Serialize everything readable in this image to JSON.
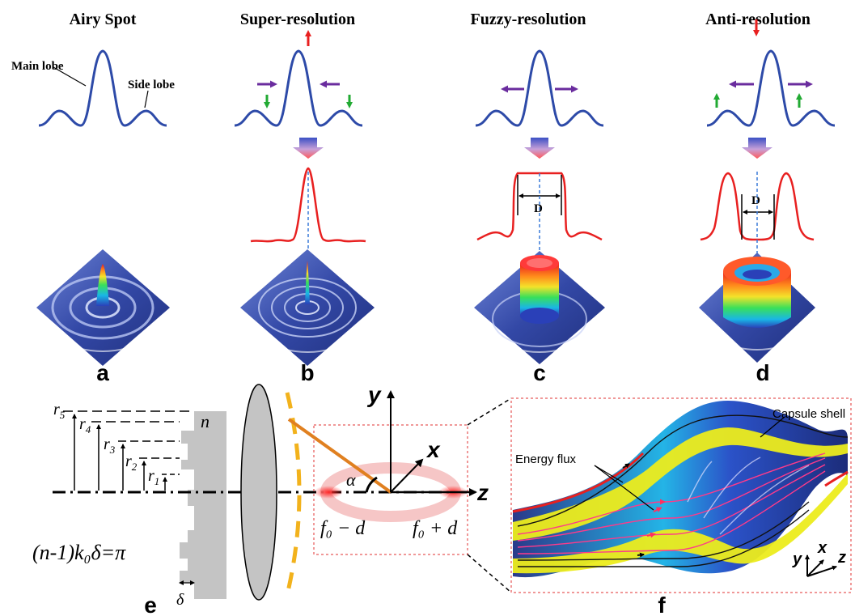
{
  "titles": {
    "a": "Airy Spot",
    "b": "Super-resolution",
    "c": "Fuzzy-resolution",
    "d": "Anti-resolution"
  },
  "panel_labels": {
    "a": "a",
    "b": "b",
    "c": "c",
    "d": "d",
    "e": "e",
    "f": "f"
  },
  "airy_annotations": {
    "main_lobe": "Main lobe",
    "side_lobe": "Side lobe"
  },
  "width_label": "D",
  "panel_e": {
    "radii": [
      "r",
      "r",
      "r",
      "r",
      "r"
    ],
    "radii_subscripts": [
      "5",
      "4",
      "3",
      "2",
      "1"
    ],
    "index_label": "n",
    "delta_label": "δ",
    "phase_equation": "(n-1)k₀δ=π",
    "alpha_label": "α",
    "focus_left": "f₀ − d",
    "focus_right": "f₀ + d",
    "axes": {
      "y": "y",
      "x": "x",
      "z": "z"
    }
  },
  "panel_f": {
    "capsule_label": "Capsule shell",
    "energy_label": "Energy flux",
    "axes": {
      "y": "y",
      "x": "x",
      "z": "z"
    }
  },
  "colors": {
    "blue_curve": "#2d4aa8",
    "red_curve": "#e82020",
    "purple_arrow": "#6a2c9e",
    "green_arrow": "#22aa33",
    "orange_ring": "#f2b21c",
    "highlight_yellow": "#ecec1c"
  }
}
